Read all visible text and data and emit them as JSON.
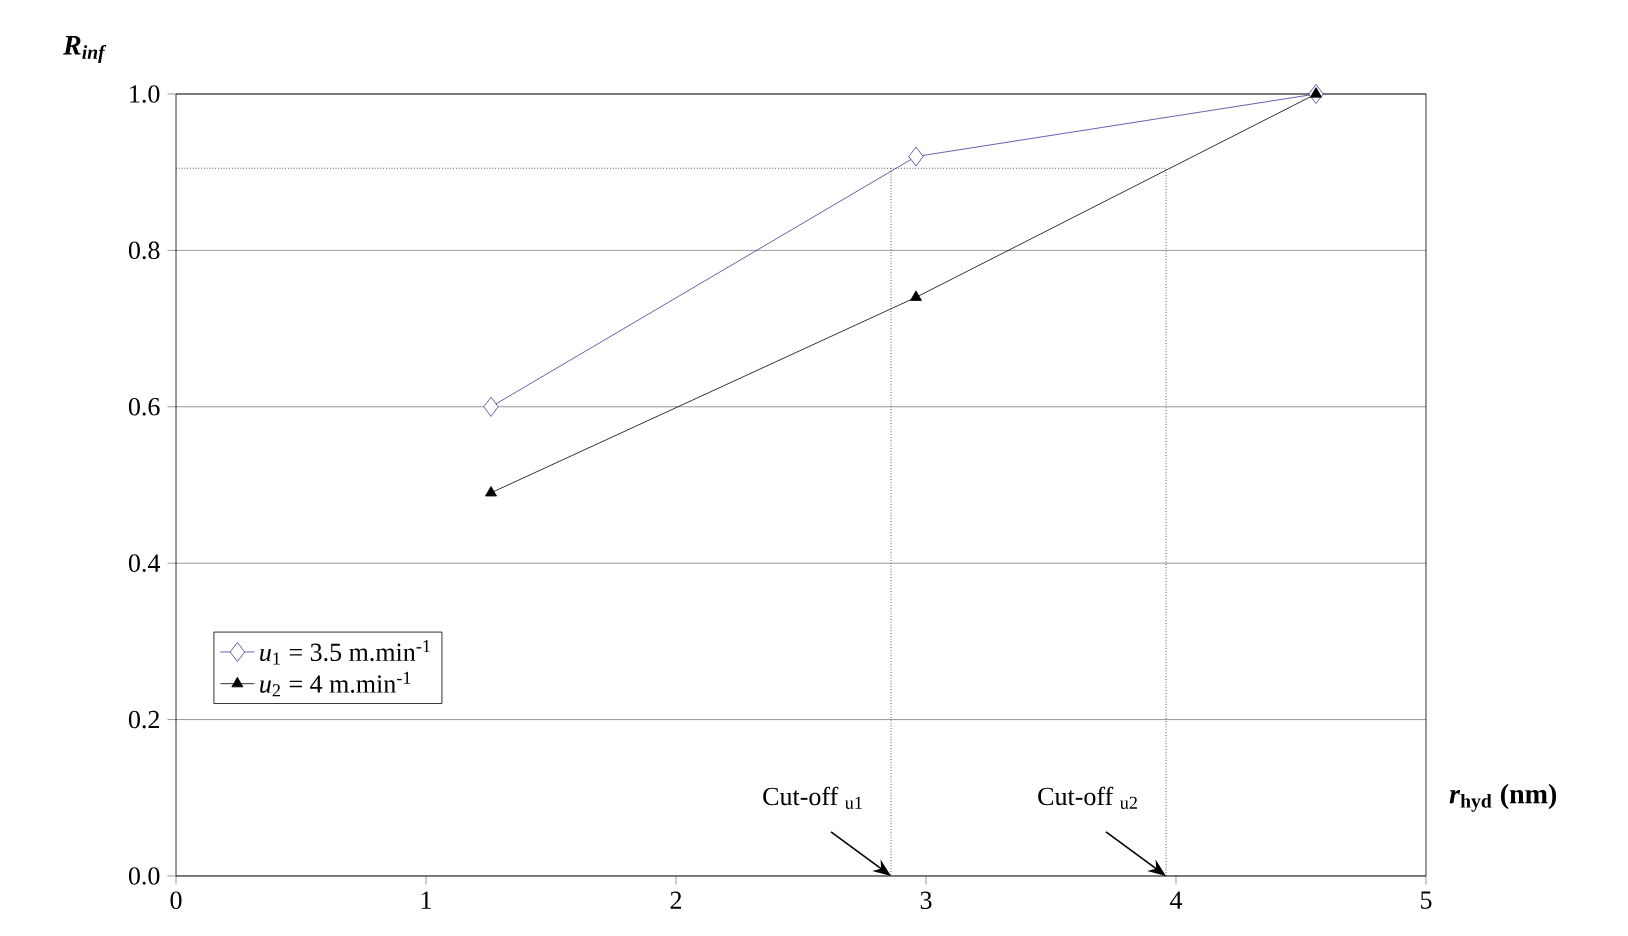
{
  "chart_data": {
    "type": "line",
    "ylabel": "R$_{inf}$",
    "xlabel": "*r*$_{hyd}$ (nm)",
    "xlim": [
      0,
      5
    ],
    "xticks": [
      0,
      1,
      2,
      3,
      4,
      5
    ],
    "ylim": [
      0,
      1
    ],
    "yticks": [
      {
        "value": 0,
        "label": "0.0"
      },
      {
        "value": 0.2,
        "label": "0.2"
      },
      {
        "value": 0.4,
        "label": "0.4"
      },
      {
        "value": 0.6,
        "label": "0.6"
      },
      {
        "value": 0.8,
        "label": "0.8"
      },
      {
        "value": 1,
        "label": "1.0"
      }
    ],
    "grid": "y",
    "legend": "left",
    "series": [
      {
        "name": "*u*$_{1}$ = 3.5 m.min$^{-1}$",
        "color": "#3c3c9c",
        "marker": "diamond",
        "x": [
          1.26,
          2.96,
          4.56
        ],
        "values": [
          0.6,
          0.92,
          1.0
        ]
      },
      {
        "name": "*u*$_{2}$ = 4 m.min$^{-1}$",
        "color": "#000000",
        "marker": "triangle",
        "x": [
          1.26,
          2.96,
          4.56
        ],
        "values": [
          0.49,
          0.74,
          1.0
        ]
      },
      {
        "color": "#000000",
        "marker": "none",
        "line_style": "dotted",
        "x": [
          0,
          3.96,
          3.96
        ],
        "values": [
          0.905,
          0.905,
          0
        ]
      },
      {
        "color": "#000000",
        "marker": "none",
        "line_style": "dotted",
        "x": [
          2.86,
          2.86
        ],
        "values": [
          0.905,
          0
        ]
      }
    ],
    "annotations": [
      {
        "text": "Cut-off $_{u1}$",
        "x": 2.86,
        "y": 0
      },
      {
        "text": "Cut-off $_{u2}$",
        "x": 3.96,
        "y": 0
      }
    ]
  }
}
